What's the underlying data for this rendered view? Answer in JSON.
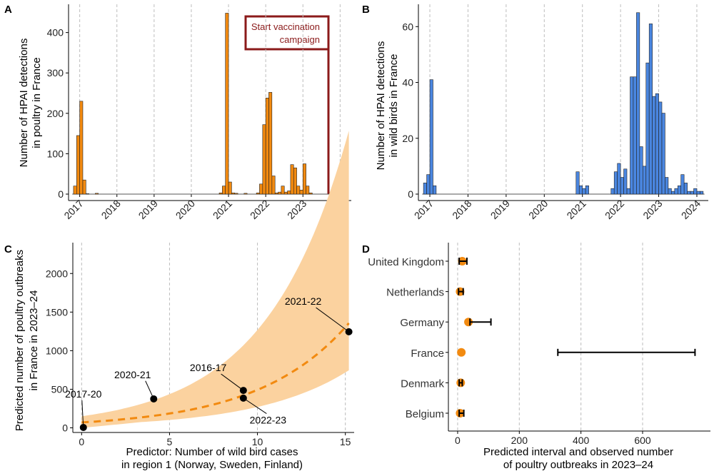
{
  "panel_labels": [
    "A",
    "B",
    "C",
    "D"
  ],
  "colors": {
    "orange": "#f28a10",
    "blue": "#4a86e0",
    "dark_red": "#8b1a1a",
    "ribbon": "#fbd29f",
    "curve": "#f28a10"
  },
  "chart_data": [
    {
      "id": "A",
      "type": "bar",
      "title": "",
      "xlabel": "",
      "ylabel_lines": [
        "Number of HPAI detections",
        "in poultry in France"
      ],
      "x_ticks": [
        "2017",
        "2018",
        "2019",
        "2020",
        "2021",
        "2022",
        "2023",
        "2024"
      ],
      "x_range": [
        2016.7,
        2024.3
      ],
      "ylim": [
        0,
        470
      ],
      "y_ticks": [
        0,
        100,
        200,
        300,
        400
      ],
      "bar_width": 0.0833,
      "bars": [
        {
          "x": 2016.833,
          "y": 20
        },
        {
          "x": 2016.917,
          "y": 145
        },
        {
          "x": 2017.0,
          "y": 230
        },
        {
          "x": 2017.083,
          "y": 35
        },
        {
          "x": 2017.167,
          "y": 1
        },
        {
          "x": 2017.417,
          "y": 2
        },
        {
          "x": 2020.75,
          "y": 3
        },
        {
          "x": 2020.833,
          "y": 20
        },
        {
          "x": 2020.917,
          "y": 448
        },
        {
          "x": 2021.0,
          "y": 30
        },
        {
          "x": 2021.083,
          "y": 3
        },
        {
          "x": 2021.167,
          "y": 2
        },
        {
          "x": 2021.417,
          "y": 2
        },
        {
          "x": 2021.75,
          "y": 3
        },
        {
          "x": 2021.833,
          "y": 25
        },
        {
          "x": 2021.917,
          "y": 172
        },
        {
          "x": 2022.0,
          "y": 238
        },
        {
          "x": 2022.083,
          "y": 252
        },
        {
          "x": 2022.167,
          "y": 45
        },
        {
          "x": 2022.25,
          "y": 3
        },
        {
          "x": 2022.333,
          "y": 5
        },
        {
          "x": 2022.417,
          "y": 20
        },
        {
          "x": 2022.5,
          "y": 5
        },
        {
          "x": 2022.583,
          "y": 8
        },
        {
          "x": 2022.667,
          "y": 73
        },
        {
          "x": 2022.75,
          "y": 65
        },
        {
          "x": 2022.833,
          "y": 20
        },
        {
          "x": 2022.917,
          "y": 10
        },
        {
          "x": 2023.0,
          "y": 75
        },
        {
          "x": 2023.083,
          "y": 20
        },
        {
          "x": 2023.167,
          "y": 3
        },
        {
          "x": 2023.75,
          "y": 3
        },
        {
          "x": 2023.833,
          "y": 5
        },
        {
          "x": 2023.917,
          "y": 5
        },
        {
          "x": 2024.0,
          "y": 5
        }
      ],
      "annotation": {
        "lines": [
          "Start vaccination",
          "campaign"
        ],
        "x": 2023.75
      }
    },
    {
      "id": "B",
      "type": "bar",
      "title": "",
      "xlabel": "",
      "ylabel_lines": [
        "Number of HPAI detections",
        "in wild birds in France"
      ],
      "x_ticks": [
        "2017",
        "2018",
        "2019",
        "2020",
        "2021",
        "2022",
        "2023",
        "2024"
      ],
      "x_range": [
        2016.7,
        2024.3
      ],
      "ylim": [
        0,
        68
      ],
      "y_ticks": [
        0,
        20,
        40,
        60
      ],
      "bar_width": 0.0833,
      "bars": [
        {
          "x": 2016.833,
          "y": 4
        },
        {
          "x": 2016.917,
          "y": 7
        },
        {
          "x": 2017.0,
          "y": 41
        },
        {
          "x": 2017.083,
          "y": 3
        },
        {
          "x": 2020.833,
          "y": 8
        },
        {
          "x": 2020.917,
          "y": 3
        },
        {
          "x": 2021.0,
          "y": 2
        },
        {
          "x": 2021.083,
          "y": 3
        },
        {
          "x": 2021.75,
          "y": 2
        },
        {
          "x": 2021.833,
          "y": 8
        },
        {
          "x": 2021.917,
          "y": 11
        },
        {
          "x": 2022.0,
          "y": 6
        },
        {
          "x": 2022.083,
          "y": 9
        },
        {
          "x": 2022.167,
          "y": 2
        },
        {
          "x": 2022.25,
          "y": 42
        },
        {
          "x": 2022.333,
          "y": 42
        },
        {
          "x": 2022.417,
          "y": 65
        },
        {
          "x": 2022.5,
          "y": 17
        },
        {
          "x": 2022.583,
          "y": 10
        },
        {
          "x": 2022.667,
          "y": 47
        },
        {
          "x": 2022.75,
          "y": 61
        },
        {
          "x": 2022.833,
          "y": 35
        },
        {
          "x": 2022.917,
          "y": 36
        },
        {
          "x": 2023.0,
          "y": 33
        },
        {
          "x": 2023.083,
          "y": 29
        },
        {
          "x": 2023.167,
          "y": 6
        },
        {
          "x": 2023.25,
          "y": 2
        },
        {
          "x": 2023.333,
          "y": 1
        },
        {
          "x": 2023.417,
          "y": 2
        },
        {
          "x": 2023.5,
          "y": 3
        },
        {
          "x": 2023.583,
          "y": 7
        },
        {
          "x": 2023.667,
          "y": 4
        },
        {
          "x": 2023.75,
          "y": 1
        },
        {
          "x": 2023.833,
          "y": 1
        },
        {
          "x": 2023.917,
          "y": 2
        },
        {
          "x": 2024.0,
          "y": 1
        },
        {
          "x": 2024.083,
          "y": 1
        }
      ]
    },
    {
      "id": "C",
      "type": "line",
      "title": "",
      "xlabel_lines": [
        "Predictor: Number of wild bird cases",
        "in region 1 (Norway, Sweden, Finland)"
      ],
      "ylabel_lines": [
        "Predicted number of poultry outbreaks",
        "in France in 2023–24"
      ],
      "xlim": [
        -0.5,
        15.5
      ],
      "ylim": [
        -60,
        2400
      ],
      "x_ticks": [
        0,
        5,
        10,
        15
      ],
      "y_ticks": [
        0,
        500,
        1000,
        1500,
        2000
      ],
      "curve_model": {
        "a": 70,
        "b": 0.195
      },
      "ribbon_model": {
        "lower_a": 0,
        "lower_b": 0.1,
        "lower_c": 2.2,
        "lower_d": 0.233,
        "upper_a": 150,
        "upper_b": 0.2135
      },
      "points": [
        {
          "label": "2017-20",
          "x": 0.1,
          "y": 5
        },
        {
          "label": "2020-21",
          "x": 4.1,
          "y": 375
        },
        {
          "label": "2016-17",
          "x": 9.2,
          "y": 485
        },
        {
          "label": "2022-23",
          "x": 9.2,
          "y": 385
        },
        {
          "label": "2021-22",
          "x": 15.2,
          "y": 1245
        }
      ],
      "point_labels": [
        {
          "text": "2017-20",
          "anchor": "2017-20",
          "tx": 0.1,
          "ty": 395
        },
        {
          "text": "2020-21",
          "anchor": "2020-21",
          "tx": 2.9,
          "ty": 645
        },
        {
          "text": "2016-17",
          "anchor": "2016-17",
          "tx": 7.2,
          "ty": 735
        },
        {
          "text": "2022-23",
          "anchor": "2022-23",
          "tx": 10.6,
          "ty": 55
        },
        {
          "text": "2021-22",
          "anchor": "2021-22",
          "tx": 12.6,
          "ty": 1595
        }
      ]
    },
    {
      "id": "D",
      "type": "scatter",
      "title": "",
      "xlabel_lines": [
        "Predicted interval and observed number",
        "of poultry outbreaks in 2023–24"
      ],
      "ylabel": "",
      "xlim": [
        -30,
        820
      ],
      "x_ticks": [
        0,
        200,
        400,
        600
      ],
      "countries": [
        "United Kingdom",
        "Netherlands",
        "Germany",
        "France",
        "Denmark",
        "Belgium"
      ],
      "intervals": [
        {
          "country": "United Kingdom",
          "low": 5,
          "high": 30,
          "observed": 15
        },
        {
          "country": "Netherlands",
          "low": 3,
          "high": 18,
          "observed": 8
        },
        {
          "country": "Germany",
          "low": 40,
          "high": 108,
          "observed": 35
        },
        {
          "country": "France",
          "low": 325,
          "high": 770,
          "observed": 12
        },
        {
          "country": "Denmark",
          "low": 5,
          "high": 15,
          "observed": 10
        },
        {
          "country": "Belgium",
          "low": 5,
          "high": 20,
          "observed": 8
        }
      ]
    }
  ]
}
